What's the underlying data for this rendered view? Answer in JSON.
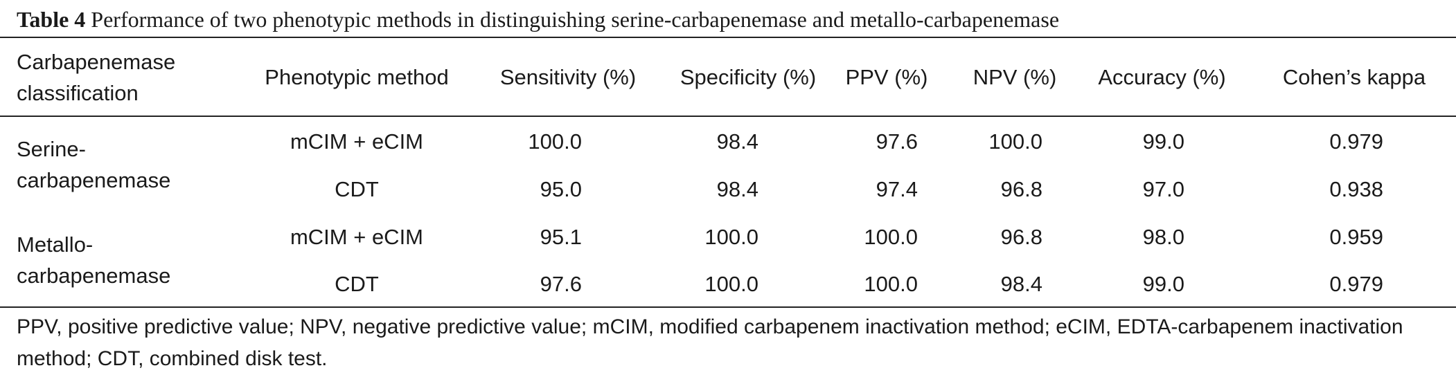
{
  "caption": {
    "label": "Table 4",
    "text": "Performance of two phenotypic methods in distinguishing serine-carbapenemase and metallo-carbapenemase"
  },
  "table": {
    "headers": {
      "classification_line1": "Carbapenemase",
      "classification_line2": "classification",
      "method": "Phenotypic method",
      "sensitivity": "Sensitivity (%)",
      "specificity": "Specificity (%)",
      "ppv": "PPV (%)",
      "npv": "NPV (%)",
      "accuracy": "Accuracy (%)",
      "kappa": "Cohen’s kappa"
    },
    "groups": [
      {
        "line1": "Serine-",
        "line2": "carbapenemase",
        "rows": [
          {
            "method": "mCIM + eCIM",
            "sensitivity": "100.0",
            "specificity": "98.4",
            "ppv": "97.6",
            "npv": "100.0",
            "accuracy": "99.0",
            "kappa": "0.979"
          },
          {
            "method": "CDT",
            "sensitivity": "95.0",
            "specificity": "98.4",
            "ppv": "97.4",
            "npv": "96.8",
            "accuracy": "97.0",
            "kappa": "0.938"
          }
        ]
      },
      {
        "line1": "Metallo-",
        "line2": "carbapenemase",
        "rows": [
          {
            "method": "mCIM + eCIM",
            "sensitivity": "95.1",
            "specificity": "100.0",
            "ppv": "100.0",
            "npv": "96.8",
            "accuracy": "98.0",
            "kappa": "0.959"
          },
          {
            "method": "CDT",
            "sensitivity": "97.6",
            "specificity": "100.0",
            "ppv": "100.0",
            "npv": "98.4",
            "accuracy": "99.0",
            "kappa": "0.979"
          }
        ]
      }
    ]
  },
  "footnote": "PPV, positive predictive value; NPV, negative predictive value; mCIM, modified carbapenem inactivation method; eCIM, EDTA-carbapenem inactivation method; CDT, combined disk test."
}
